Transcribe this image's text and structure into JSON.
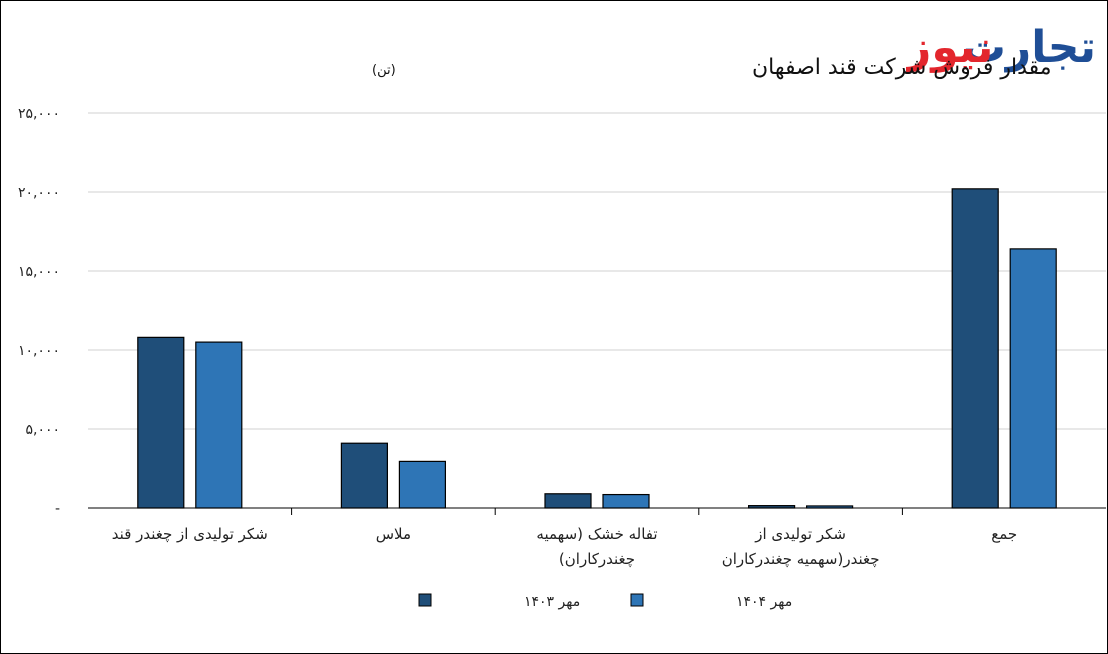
{
  "logo": {
    "part_red": "نیوز",
    "part_blue": "تجارت"
  },
  "chart_data": {
    "type": "bar",
    "title": "مقدار فروش شرکت قند اصفهان",
    "title_unit": "(تن)",
    "categories": [
      [
        "شکر تولیدی از چغندر قند"
      ],
      [
        "ملاس"
      ],
      [
        "تفاله خشک (سهمیه",
        "چغندرکاران)"
      ],
      [
        "شکر تولیدی از",
        "چغندر(سهمیه چغندرکاران"
      ],
      [
        "جمع"
      ]
    ],
    "series": [
      {
        "name": "مهر ۱۴۰۳",
        "color": "#1f4e79",
        "values": [
          10800,
          4100,
          900,
          150,
          20200
        ]
      },
      {
        "name": "مهر ۱۴۰۴",
        "color": "#2e75b6",
        "values": [
          10500,
          2950,
          850,
          130,
          16400
        ]
      }
    ],
    "ylim": [
      0,
      25000
    ],
    "yticks": [
      {
        "value": 0,
        "label": "-"
      },
      {
        "value": 5000,
        "label": "۵,۰۰۰"
      },
      {
        "value": 10000,
        "label": "۱۰,۰۰۰"
      },
      {
        "value": 15000,
        "label": "۱۵,۰۰۰"
      },
      {
        "value": 20000,
        "label": "۲۰,۰۰۰"
      },
      {
        "value": 25000,
        "label": "۲۵,۰۰۰"
      }
    ],
    "grid": true,
    "legend": "bottom"
  }
}
